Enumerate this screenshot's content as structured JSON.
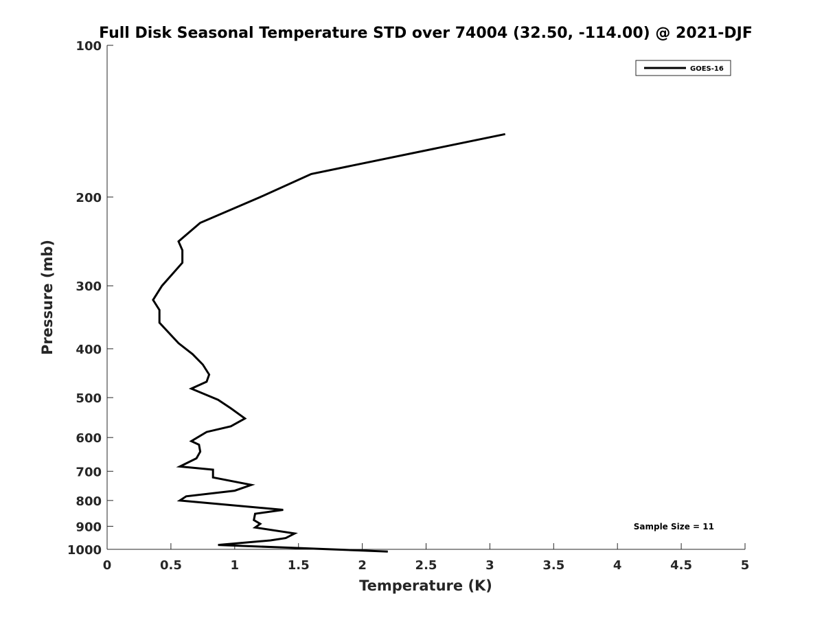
{
  "chart_data": {
    "type": "line",
    "title": "Full Disk Seasonal Temperature STD over 74004 (32.50, -114.00) @ 2021-DJF",
    "xlabel": "Temperature (K)",
    "ylabel": "Pressure (mb)",
    "xlim": [
      0,
      5
    ],
    "ylim": [
      100,
      1000
    ],
    "yscale": "log",
    "yreversed": true,
    "xticks": [
      0,
      0.5,
      1,
      1.5,
      2,
      2.5,
      3,
      3.5,
      4,
      4.5,
      5
    ],
    "xtick_labels": [
      "0",
      "0.5",
      "1",
      "1.5",
      "2",
      "2.5",
      "3",
      "3.5",
      "4",
      "4.5",
      "5"
    ],
    "yticks": [
      100,
      200,
      300,
      400,
      500,
      600,
      700,
      800,
      900,
      1000
    ],
    "ytick_labels": [
      "100",
      "200",
      "300",
      "400",
      "500",
      "600",
      "700",
      "800",
      "900",
      "1000"
    ],
    "grid": false,
    "legend": {
      "position": "top-right",
      "entries": [
        "GOES-16"
      ]
    },
    "annotation": "Sample Size = 11",
    "colors": {
      "series": "#000000",
      "axis": "#262626"
    },
    "series": [
      {
        "name": "GOES-16",
        "x": [
          3.12,
          1.6,
          1.2,
          0.73,
          0.56,
          0.59,
          0.59,
          0.43,
          0.36,
          0.41,
          0.41,
          0.56,
          0.67,
          0.75,
          0.8,
          0.78,
          0.66,
          0.87,
          0.97,
          1.08,
          0.97,
          0.78,
          0.66,
          0.72,
          0.73,
          0.7,
          0.57,
          0.83,
          0.83,
          1.13,
          1.0,
          0.62,
          0.57,
          1.38,
          1.16,
          1.15,
          1.2,
          1.16,
          1.47,
          1.4,
          1.28,
          0.87,
          2.2
        ],
        "y": [
          150,
          180,
          200,
          225,
          245,
          255,
          270,
          300,
          320,
          335,
          355,
          390,
          410,
          430,
          450,
          465,
          480,
          505,
          525,
          550,
          570,
          585,
          610,
          620,
          640,
          660,
          685,
          695,
          720,
          745,
          765,
          785,
          800,
          835,
          850,
          875,
          890,
          905,
          930,
          950,
          960,
          980,
          1010
        ]
      }
    ]
  }
}
